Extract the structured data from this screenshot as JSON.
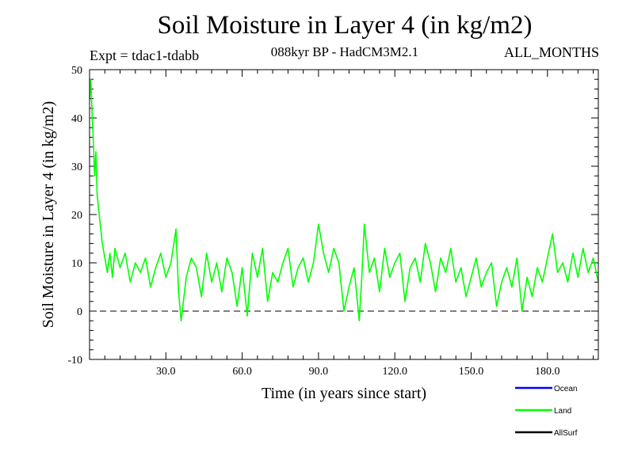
{
  "header": {
    "title": "Soil Moisture in Layer 4 (in kg/m2)",
    "experiment": "Expt = tdac1-tdabb",
    "subtitle": "088kyr BP - HadCM3M2.1",
    "months": "ALL_MONTHS"
  },
  "chart_data": {
    "type": "line",
    "title": "Soil Moisture in Layer 4 (in kg/m2)",
    "xlabel": "Time (in years since start)",
    "ylabel": "Soil Moisture in Layer 4 (in kg/m2)",
    "xlim": [
      0,
      200
    ],
    "ylim": [
      -10,
      50
    ],
    "x_ticks": [
      30,
      60,
      90,
      120,
      150,
      180
    ],
    "x_tick_labels": [
      "30.0",
      "60.0",
      "90.0",
      "120.0",
      "150.0",
      "180.0"
    ],
    "y_ticks": [
      -10,
      0,
      10,
      20,
      30,
      40,
      50
    ],
    "y_tick_labels": [
      "-10",
      "0",
      "10",
      "20",
      "30",
      "40",
      "50"
    ],
    "reference_line": {
      "y": 0,
      "style": "dashed"
    },
    "legend": [
      {
        "name": "Ocean",
        "color": "#0000ff"
      },
      {
        "name": "Land",
        "color": "#00ff00"
      },
      {
        "name": "AllSurf",
        "color": "#000000"
      }
    ],
    "series": [
      {
        "name": "Land",
        "color": "#00ff00",
        "x": [
          0,
          0.5,
          1,
          1.5,
          2,
          2.5,
          3,
          4,
          5,
          6,
          7,
          8,
          9,
          10,
          12,
          14,
          16,
          18,
          20,
          22,
          24,
          26,
          28,
          30,
          32,
          34,
          35,
          36,
          38,
          40,
          42,
          44,
          46,
          48,
          50,
          52,
          54,
          56,
          58,
          60,
          62,
          64,
          66,
          68,
          70,
          72,
          74,
          76,
          78,
          80,
          82,
          84,
          86,
          88,
          90,
          92,
          94,
          96,
          98,
          100,
          102,
          104,
          106,
          107,
          108,
          110,
          112,
          114,
          116,
          118,
          120,
          122,
          124,
          126,
          128,
          130,
          132,
          134,
          136,
          138,
          140,
          142,
          144,
          146,
          148,
          150,
          152,
          154,
          156,
          158,
          160,
          162,
          164,
          166,
          168,
          170,
          172,
          174,
          176,
          178,
          180,
          182,
          184,
          186,
          188,
          190,
          192,
          194,
          196,
          198,
          200
        ],
        "values": [
          44,
          48,
          41,
          35,
          28,
          33,
          24,
          19,
          14,
          11,
          8,
          12,
          7,
          13,
          9,
          12,
          6,
          10,
          8,
          11,
          5,
          9,
          12,
          7,
          10,
          17,
          4,
          -2,
          7,
          11,
          9,
          3,
          12,
          6,
          10,
          4,
          11,
          8,
          1,
          9,
          -1,
          12,
          7,
          13,
          2,
          8,
          6,
          10,
          13,
          5,
          9,
          11,
          6,
          10,
          18,
          12,
          8,
          13,
          10,
          0,
          5,
          9,
          -2,
          7,
          18,
          8,
          11,
          4,
          13,
          7,
          10,
          12,
          2,
          9,
          11,
          6,
          14,
          10,
          4,
          11,
          8,
          13,
          6,
          9,
          3,
          7,
          11,
          5,
          8,
          10,
          1,
          6,
          9,
          5,
          11,
          0,
          7,
          3,
          9,
          6,
          11,
          16,
          8,
          10,
          6,
          12,
          7,
          13,
          8,
          11,
          6
        ]
      }
    ]
  }
}
